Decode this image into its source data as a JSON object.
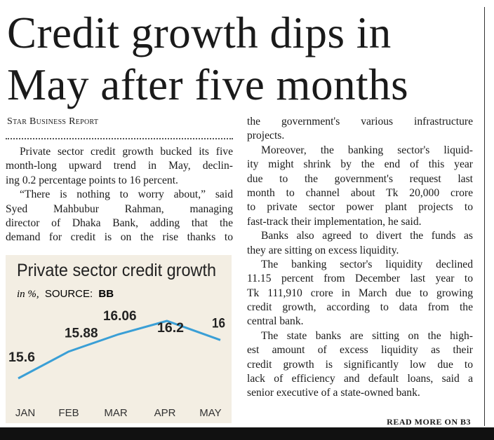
{
  "headline": [
    "Credit growth dips in",
    "May after five months"
  ],
  "byline": "Star Business Report",
  "columns": [
    [
      [
        "Private sector credit growth bucked its five",
        "month-long upward trend in May, declin-",
        "ing 0.2 percentage points to 16 percent."
      ],
      [
        "“There is nothing to worry about,” said",
        "Syed Mahbubur Rahman, managing",
        "director of Dhaka Bank, adding that the",
        "demand for credit is on the rise thanks to"
      ]
    ],
    [
      [
        "the government's various infrastructure",
        "projects."
      ],
      [
        "Moreover, the banking sector's liquid-",
        "ity might shrink by the end of this year",
        "due to the government's request last",
        "month to channel about Tk 20,000 crore",
        "to private sector power plant projects to",
        "fast-track their implementation, he said."
      ],
      [
        "Banks also agreed to divert the funds as",
        "they are sitting on excess liquidity."
      ],
      [
        "The banking sector's liquidity declined",
        "11.15 percent from December last year to",
        "Tk 111,910 crore in March due to growing",
        "credit growth, according to data from the",
        "central bank."
      ],
      [
        "The state banks are sitting on the high-",
        "est amount of excess liquidity as their",
        "credit growth is significantly low due to",
        "lack of efficiency and default loans, said a",
        "senior executive of a state-owned bank."
      ]
    ]
  ],
  "read_more": "READ MORE ON B3",
  "chart": {
    "type": "line",
    "title": "Private sector credit growth",
    "unit_note": "in %,",
    "source_label": "SOURCE:",
    "source": "BB",
    "categories": [
      "JAN",
      "FEB",
      "MAR",
      "APR",
      "MAY"
    ],
    "values": [
      15.6,
      15.88,
      16.06,
      16.2,
      16
    ],
    "color": "#3a9fd6"
  }
}
